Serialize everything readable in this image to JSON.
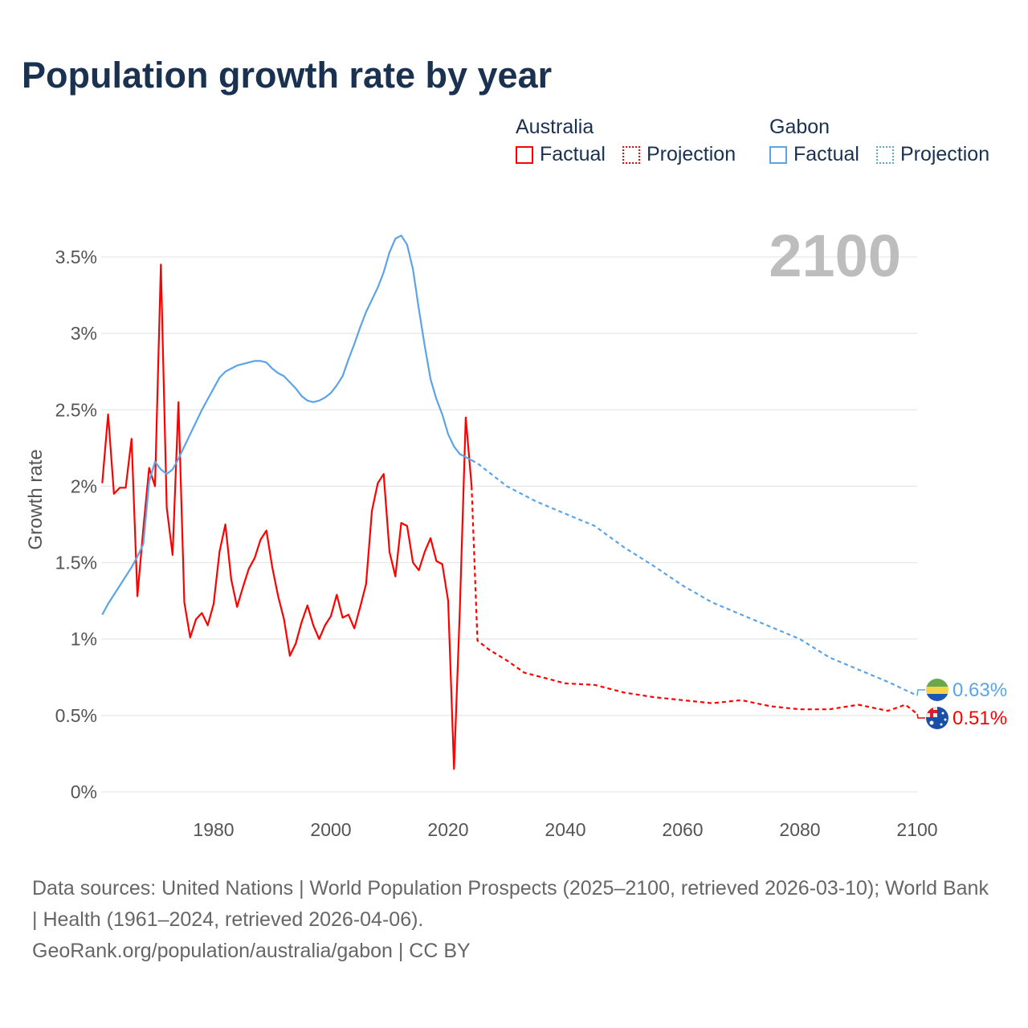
{
  "title": "Population growth rate by year",
  "legend": {
    "groups": [
      {
        "name": "Australia",
        "color": "#ff0000",
        "factual": "Factual",
        "projection": "Projection"
      },
      {
        "name": "Gabon",
        "color": "#5ba4e8",
        "factual": "Factual",
        "projection": "Projection"
      }
    ]
  },
  "current_year": "2100",
  "end_labels": {
    "gabon": "0.63%",
    "australia": "0.51%"
  },
  "footer": {
    "sources": "Data sources: United Nations | World Population Prospects (2025–2100, retrieved 2026-03-10); World Bank | Health (1961–2024, retrieved 2026-04-06).",
    "credit": "GeoRank.org/population/australia/gabon | CC BY"
  },
  "chart_data": {
    "type": "line",
    "title": "Population growth rate by year",
    "xlabel": "",
    "ylabel": "Growth rate",
    "xlim": [
      1961,
      2100
    ],
    "ylim": [
      0,
      3.7
    ],
    "x_ticks": [
      1980,
      2000,
      2020,
      2040,
      2060,
      2080,
      2100
    ],
    "y_ticks": [
      {
        "value": 0,
        "label": "0%"
      },
      {
        "value": 0.5,
        "label": "0.5%"
      },
      {
        "value": 1,
        "label": "1%"
      },
      {
        "value": 1.5,
        "label": "1.5%"
      },
      {
        "value": 2,
        "label": "2%"
      },
      {
        "value": 2.5,
        "label": "2.5%"
      },
      {
        "value": 3,
        "label": "3%"
      },
      {
        "value": 3.5,
        "label": "3.5%"
      }
    ],
    "grid": true,
    "legend_position": "top-right",
    "series": [
      {
        "name": "Australia Factual",
        "color": "#ff0000",
        "dashed": false,
        "start_year": 1961,
        "values": [
          2.02,
          2.47,
          1.95,
          1.99,
          1.99,
          2.31,
          1.28,
          1.72,
          2.12,
          2.0,
          3.45,
          1.86,
          1.55,
          2.55,
          1.24,
          1.01,
          1.13,
          1.17,
          1.09,
          1.23,
          1.57,
          1.75,
          1.39,
          1.21,
          1.34,
          1.46,
          1.53,
          1.65,
          1.71,
          1.47,
          1.28,
          1.13,
          0.89,
          0.97,
          1.11,
          1.22,
          1.09,
          1.0,
          1.09,
          1.15,
          1.29,
          1.14,
          1.16,
          1.07,
          1.21,
          1.36,
          1.84,
          2.02,
          2.08,
          1.57,
          1.41,
          1.76,
          1.74,
          1.5,
          1.45,
          1.57,
          1.66,
          1.51,
          1.49,
          1.25,
          0.15,
          1.2,
          2.45,
          2.0
        ]
      },
      {
        "name": "Australia Projection",
        "color": "#ff0000",
        "dashed": true,
        "points": [
          [
            2024,
            2.0
          ],
          [
            2025,
            0.99
          ],
          [
            2027,
            0.93
          ],
          [
            2030,
            0.86
          ],
          [
            2033,
            0.78
          ],
          [
            2035,
            0.76
          ],
          [
            2038,
            0.73
          ],
          [
            2040,
            0.71
          ],
          [
            2045,
            0.7
          ],
          [
            2050,
            0.65
          ],
          [
            2055,
            0.62
          ],
          [
            2060,
            0.6
          ],
          [
            2065,
            0.58
          ],
          [
            2070,
            0.6
          ],
          [
            2075,
            0.56
          ],
          [
            2080,
            0.54
          ],
          [
            2085,
            0.54
          ],
          [
            2090,
            0.57
          ],
          [
            2095,
            0.53
          ],
          [
            2098,
            0.57
          ],
          [
            2100,
            0.51
          ]
        ]
      },
      {
        "name": "Gabon Factual",
        "color": "#5ba4e8",
        "dashed": false,
        "start_year": 1961,
        "values": [
          1.16,
          1.23,
          1.29,
          1.35,
          1.41,
          1.47,
          1.54,
          1.62,
          2.03,
          2.16,
          2.11,
          2.08,
          2.11,
          2.18,
          2.26,
          2.34,
          2.42,
          2.5,
          2.57,
          2.64,
          2.71,
          2.75,
          2.77,
          2.79,
          2.8,
          2.81,
          2.82,
          2.82,
          2.81,
          2.77,
          2.74,
          2.72,
          2.68,
          2.64,
          2.59,
          2.56,
          2.55,
          2.56,
          2.58,
          2.61,
          2.66,
          2.72,
          2.83,
          2.93,
          3.04,
          3.14,
          3.22,
          3.3,
          3.4,
          3.53,
          3.62,
          3.64,
          3.58,
          3.42,
          3.16,
          2.92,
          2.7,
          2.57,
          2.47,
          2.34,
          2.26,
          2.21,
          2.19,
          2.17
        ]
      },
      {
        "name": "Gabon Projection",
        "color": "#5ba4e8",
        "dashed": true,
        "points": [
          [
            2024,
            2.17
          ],
          [
            2025,
            2.15
          ],
          [
            2030,
            2.0
          ],
          [
            2035,
            1.9
          ],
          [
            2040,
            1.82
          ],
          [
            2045,
            1.74
          ],
          [
            2050,
            1.6
          ],
          [
            2055,
            1.48
          ],
          [
            2060,
            1.35
          ],
          [
            2065,
            1.24
          ],
          [
            2070,
            1.16
          ],
          [
            2075,
            1.08
          ],
          [
            2080,
            1.0
          ],
          [
            2085,
            0.88
          ],
          [
            2090,
            0.8
          ],
          [
            2095,
            0.72
          ],
          [
            2100,
            0.63
          ]
        ]
      }
    ]
  }
}
